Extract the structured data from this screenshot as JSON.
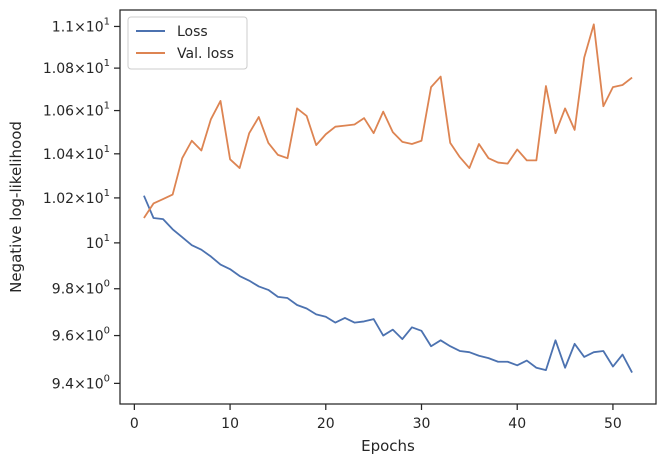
{
  "chart_data": {
    "type": "line",
    "xlabel": "Epochs",
    "ylabel": "Negative log-likelihood",
    "yscale": "log",
    "grid": false,
    "legend_position": "top-left",
    "xlim": [
      -1.5,
      54.5
    ],
    "ylim": [
      9.315,
      11.08
    ],
    "x_ticks": [
      {
        "value": 0,
        "label": "0"
      },
      {
        "value": 10,
        "label": "10"
      },
      {
        "value": 20,
        "label": "20"
      },
      {
        "value": 30,
        "label": "30"
      },
      {
        "value": 40,
        "label": "40"
      },
      {
        "value": 50,
        "label": "50"
      }
    ],
    "y_ticks": [
      {
        "value": 9.4,
        "mantissa": "9.4",
        "base": "10",
        "exp": "0"
      },
      {
        "value": 9.6,
        "mantissa": "9.6",
        "base": "10",
        "exp": "0"
      },
      {
        "value": 9.8,
        "mantissa": "9.8",
        "base": "10",
        "exp": "0"
      },
      {
        "value": 10.0,
        "mantissa": "",
        "base": "10",
        "exp": "1"
      },
      {
        "value": 10.2,
        "mantissa": "1.02",
        "base": "10",
        "exp": "1"
      },
      {
        "value": 10.4,
        "mantissa": "1.04",
        "base": "10",
        "exp": "1"
      },
      {
        "value": 10.6,
        "mantissa": "1.06",
        "base": "10",
        "exp": "1"
      },
      {
        "value": 10.8,
        "mantissa": "1.08",
        "base": "10",
        "exp": "1"
      },
      {
        "value": 11.0,
        "mantissa": "1.1",
        "base": "10",
        "exp": "1"
      }
    ],
    "x": [
      1,
      2,
      3,
      4,
      5,
      6,
      7,
      8,
      9,
      10,
      11,
      12,
      13,
      14,
      15,
      16,
      17,
      18,
      19,
      20,
      21,
      22,
      23,
      24,
      25,
      26,
      27,
      28,
      29,
      30,
      31,
      32,
      33,
      34,
      35,
      36,
      37,
      38,
      39,
      40,
      41,
      42,
      43,
      44,
      45,
      46,
      47,
      48,
      49,
      50,
      51,
      52
    ],
    "series": [
      {
        "name": "Loss",
        "color": "#4c72b0",
        "values": [
          10.21,
          10.11,
          10.105,
          10.06,
          10.025,
          9.99,
          9.97,
          9.94,
          9.905,
          9.885,
          9.855,
          9.835,
          9.81,
          9.795,
          9.765,
          9.76,
          9.73,
          9.715,
          9.69,
          9.68,
          9.655,
          9.675,
          9.655,
          9.66,
          9.67,
          9.6,
          9.625,
          9.585,
          9.635,
          9.62,
          9.555,
          9.58,
          9.555,
          9.535,
          9.53,
          9.515,
          9.505,
          9.49,
          9.49,
          9.475,
          9.495,
          9.465,
          9.455,
          9.58,
          9.465,
          9.565,
          9.51,
          9.53,
          9.535,
          9.47,
          9.52,
          9.445
        ]
      },
      {
        "name": "Val. loss",
        "color": "#dd8452",
        "values": [
          10.11,
          10.175,
          10.195,
          10.215,
          10.38,
          10.46,
          10.415,
          10.56,
          10.645,
          10.375,
          10.335,
          10.495,
          10.57,
          10.45,
          10.395,
          10.38,
          10.61,
          10.575,
          10.44,
          10.49,
          10.525,
          10.53,
          10.535,
          10.565,
          10.495,
          10.595,
          10.5,
          10.455,
          10.445,
          10.46,
          10.71,
          10.76,
          10.45,
          10.385,
          10.335,
          10.445,
          10.38,
          10.36,
          10.355,
          10.42,
          10.37,
          10.37,
          10.715,
          10.495,
          10.61,
          10.51,
          10.85,
          11.01,
          10.62,
          10.71,
          10.72,
          10.755
        ]
      }
    ]
  }
}
